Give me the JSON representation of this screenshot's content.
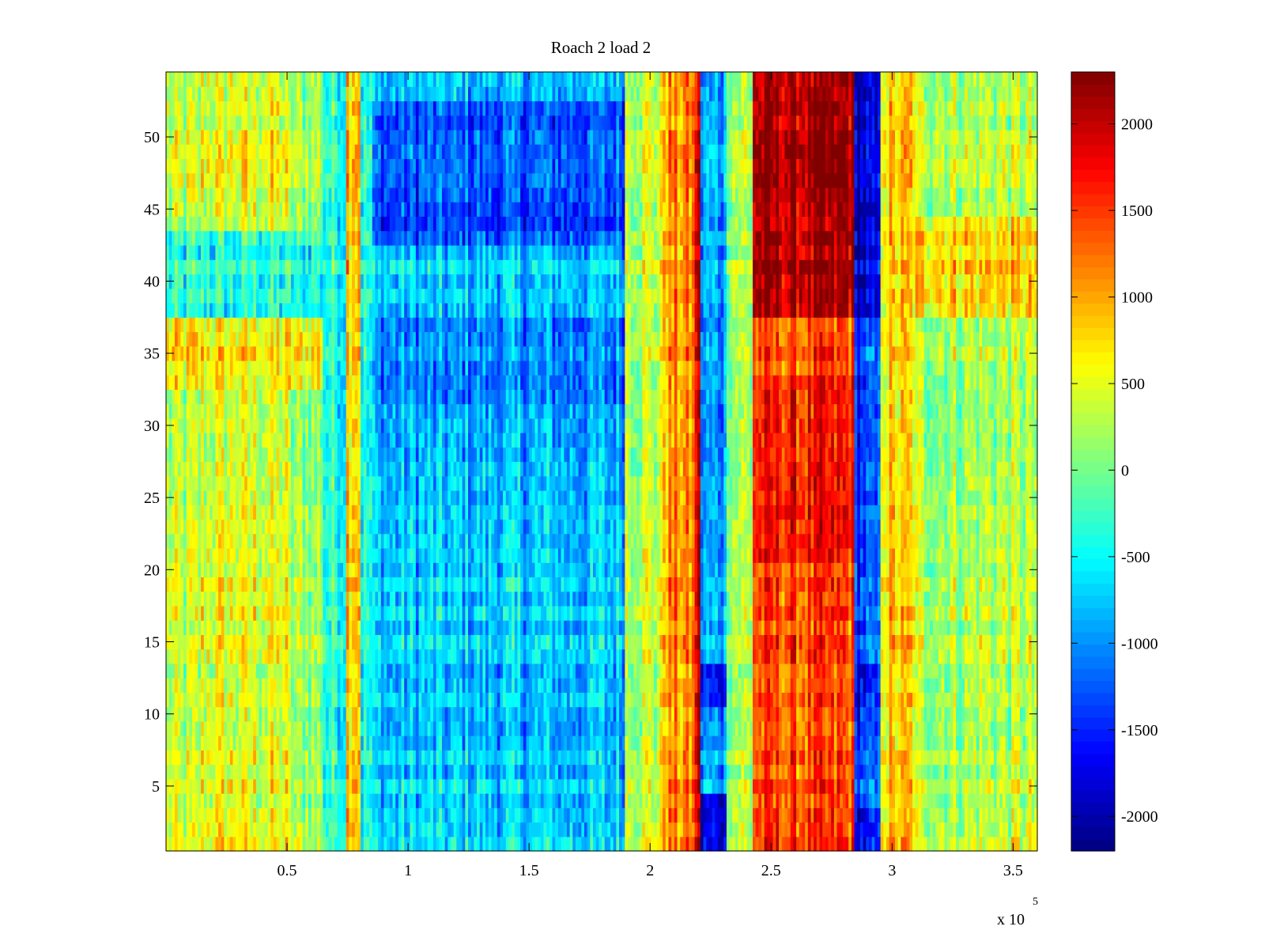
{
  "chart_data": {
    "type": "heatmap",
    "title": "Roach 2 load 2",
    "xlabel": "",
    "ylabel": "",
    "xlim": [
      0,
      360000
    ],
    "ylim": [
      0.5,
      54.5
    ],
    "x_multiplier_label": "x 10",
    "x_multiplier_exponent": "5",
    "x_ticks": [
      0.5,
      1,
      1.5,
      2,
      2.5,
      3,
      3.5
    ],
    "x_tick_labels": [
      "0.5",
      "1",
      "1.5",
      "2",
      "2.5",
      "3",
      "3.5"
    ],
    "y_ticks": [
      5,
      10,
      15,
      20,
      25,
      30,
      35,
      40,
      45,
      50
    ],
    "y_tick_labels": [
      "5",
      "10",
      "15",
      "20",
      "25",
      "30",
      "35",
      "40",
      "45",
      "50"
    ],
    "rows": 54,
    "colorbar": {
      "colormap": "jet",
      "clim": [
        -2200,
        2300
      ],
      "ticks": [
        -2000,
        -1500,
        -1000,
        -500,
        0,
        500,
        1000,
        1500,
        2000
      ],
      "tick_labels": [
        "-2000",
        "-1500",
        "-1000",
        "-500",
        "0",
        "500",
        "1000",
        "1500",
        "2000"
      ]
    },
    "column_bands": [
      {
        "x_start": 0,
        "x_end": 15000,
        "value": 300
      },
      {
        "x_start": 15000,
        "x_end": 50000,
        "value": 500
      },
      {
        "x_start": 50000,
        "x_end": 65000,
        "value": 200
      },
      {
        "x_start": 65000,
        "x_end": 75000,
        "value": -300
      },
      {
        "x_start": 75000,
        "x_end": 80000,
        "value": 1000
      },
      {
        "x_start": 80000,
        "x_end": 85000,
        "value": -400
      },
      {
        "x_start": 85000,
        "x_end": 190000,
        "value": -750
      },
      {
        "x_start": 190000,
        "x_end": 205000,
        "value": 400
      },
      {
        "x_start": 205000,
        "x_end": 218000,
        "value": 1100
      },
      {
        "x_start": 218000,
        "x_end": 221000,
        "value": 1900
      },
      {
        "x_start": 221000,
        "x_end": 232000,
        "value": -900
      },
      {
        "x_start": 232000,
        "x_end": 243000,
        "value": 300
      },
      {
        "x_start": 243000,
        "x_end": 285000,
        "value": 1400
      },
      {
        "x_start": 285000,
        "x_end": 295000,
        "value": -1300
      },
      {
        "x_start": 295000,
        "x_end": 310000,
        "value": 800
      },
      {
        "x_start": 310000,
        "x_end": 360000,
        "value": 300
      }
    ],
    "region_adjustments": [
      {
        "x_start": 243000,
        "x_end": 285000,
        "y_start": 38,
        "y_end": 54,
        "value": 2100
      },
      {
        "x_start": 243000,
        "x_end": 285000,
        "y_start": 21,
        "y_end": 33,
        "value": 1700
      },
      {
        "x_start": 85000,
        "x_end": 190000,
        "y_start": 43,
        "y_end": 52,
        "value": -1300
      },
      {
        "x_start": 85000,
        "x_end": 190000,
        "y_start": 32,
        "y_end": 37,
        "value": -1000
      },
      {
        "x_start": 0,
        "x_end": 65000,
        "y_start": 33,
        "y_end": 37,
        "value": 700
      },
      {
        "x_start": 0,
        "x_end": 65000,
        "y_start": 38,
        "y_end": 43,
        "value": -400
      },
      {
        "x_start": 285000,
        "x_end": 295000,
        "y_start": 38,
        "y_end": 54,
        "value": -1900
      },
      {
        "x_start": 221000,
        "x_end": 232000,
        "y_start": 1,
        "y_end": 4,
        "value": -1800
      },
      {
        "x_start": 221000,
        "x_end": 232000,
        "y_start": 11,
        "y_end": 13,
        "value": -1500
      },
      {
        "x_start": 285000,
        "x_end": 295000,
        "y_start": 1,
        "y_end": 3,
        "value": -1800
      },
      {
        "x_start": 285000,
        "x_end": 295000,
        "y_start": 11,
        "y_end": 13,
        "value": -1600
      },
      {
        "x_start": 310000,
        "x_end": 360000,
        "y_start": 38,
        "y_end": 44,
        "value": 800
      }
    ]
  }
}
